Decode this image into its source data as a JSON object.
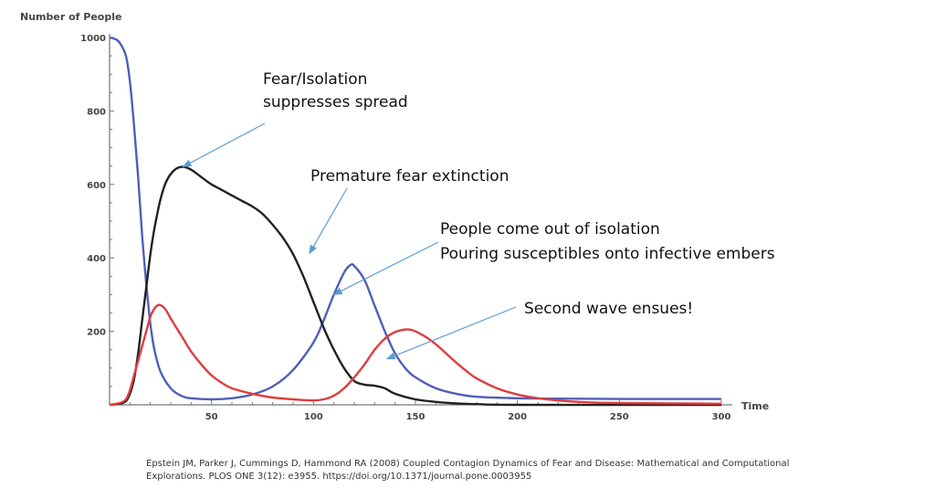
{
  "chart_data": {
    "type": "line",
    "ylabel": "Number of People",
    "xlabel": "Time",
    "xlim": [
      0,
      300
    ],
    "ylim": [
      0,
      1000
    ],
    "x_ticks": [
      50,
      100,
      150,
      200,
      250,
      300
    ],
    "y_ticks": [
      200,
      400,
      600,
      800,
      1000
    ],
    "grid": false,
    "series": [
      {
        "color": "#4f5fb8",
        "points": [
          [
            0,
            1000
          ],
          [
            3,
            995
          ],
          [
            5,
            985
          ],
          [
            8,
            950
          ],
          [
            10,
            880
          ],
          [
            12,
            760
          ],
          [
            14,
            620
          ],
          [
            16,
            460
          ],
          [
            18,
            330
          ],
          [
            20,
            220
          ],
          [
            22,
            150
          ],
          [
            25,
            90
          ],
          [
            30,
            45
          ],
          [
            35,
            25
          ],
          [
            40,
            18
          ],
          [
            50,
            15
          ],
          [
            60,
            18
          ],
          [
            70,
            28
          ],
          [
            80,
            50
          ],
          [
            90,
            95
          ],
          [
            100,
            170
          ],
          [
            105,
            230
          ],
          [
            110,
            300
          ],
          [
            115,
            360
          ],
          [
            118,
            380
          ],
          [
            120,
            378
          ],
          [
            125,
            340
          ],
          [
            130,
            270
          ],
          [
            135,
            200
          ],
          [
            140,
            140
          ],
          [
            145,
            100
          ],
          [
            150,
            75
          ],
          [
            160,
            45
          ],
          [
            170,
            30
          ],
          [
            180,
            22
          ],
          [
            200,
            18
          ],
          [
            220,
            17
          ],
          [
            250,
            16
          ],
          [
            300,
            16
          ]
        ]
      },
      {
        "color": "#222222",
        "points": [
          [
            0,
            0
          ],
          [
            5,
            3
          ],
          [
            8,
            10
          ],
          [
            10,
            30
          ],
          [
            12,
            70
          ],
          [
            14,
            140
          ],
          [
            16,
            230
          ],
          [
            18,
            320
          ],
          [
            20,
            410
          ],
          [
            22,
            480
          ],
          [
            25,
            560
          ],
          [
            28,
            610
          ],
          [
            32,
            640
          ],
          [
            36,
            648
          ],
          [
            40,
            640
          ],
          [
            45,
            620
          ],
          [
            50,
            600
          ],
          [
            55,
            585
          ],
          [
            60,
            570
          ],
          [
            65,
            555
          ],
          [
            70,
            540
          ],
          [
            75,
            520
          ],
          [
            80,
            490
          ],
          [
            85,
            455
          ],
          [
            90,
            410
          ],
          [
            95,
            350
          ],
          [
            100,
            280
          ],
          [
            105,
            210
          ],
          [
            110,
            150
          ],
          [
            115,
            100
          ],
          [
            120,
            65
          ],
          [
            125,
            55
          ],
          [
            130,
            52
          ],
          [
            135,
            45
          ],
          [
            140,
            30
          ],
          [
            150,
            15
          ],
          [
            160,
            8
          ],
          [
            170,
            4
          ],
          [
            180,
            2
          ],
          [
            200,
            0
          ],
          [
            300,
            0
          ]
        ]
      },
      {
        "color": "#e03c3c",
        "points": [
          [
            0,
            0
          ],
          [
            5,
            5
          ],
          [
            8,
            15
          ],
          [
            10,
            40
          ],
          [
            12,
            80
          ],
          [
            15,
            140
          ],
          [
            18,
            200
          ],
          [
            20,
            240
          ],
          [
            22,
            262
          ],
          [
            24,
            272
          ],
          [
            26,
            268
          ],
          [
            28,
            255
          ],
          [
            30,
            235
          ],
          [
            35,
            190
          ],
          [
            40,
            145
          ],
          [
            45,
            110
          ],
          [
            50,
            80
          ],
          [
            55,
            60
          ],
          [
            60,
            45
          ],
          [
            70,
            30
          ],
          [
            80,
            20
          ],
          [
            90,
            15
          ],
          [
            100,
            12
          ],
          [
            105,
            15
          ],
          [
            110,
            25
          ],
          [
            115,
            45
          ],
          [
            120,
            75
          ],
          [
            125,
            110
          ],
          [
            130,
            150
          ],
          [
            135,
            180
          ],
          [
            140,
            198
          ],
          [
            145,
            205
          ],
          [
            148,
            204
          ],
          [
            150,
            200
          ],
          [
            155,
            185
          ],
          [
            160,
            165
          ],
          [
            165,
            140
          ],
          [
            170,
            115
          ],
          [
            175,
            92
          ],
          [
            180,
            72
          ],
          [
            190,
            45
          ],
          [
            200,
            28
          ],
          [
            210,
            18
          ],
          [
            220,
            12
          ],
          [
            230,
            8
          ],
          [
            250,
            5
          ],
          [
            300,
            3
          ]
        ]
      }
    ],
    "annotations": [
      {
        "lines": [
          "Fear/Isolation",
          "suppresses spread"
        ],
        "color": "#5b9bd5",
        "target": [
          36,
          648
        ]
      },
      {
        "lines": [
          "Premature fear extinction"
        ],
        "color": "#5b9bd5",
        "target": [
          98,
          412
        ]
      },
      {
        "lines": [
          "People come out of isolation",
          "Pouring susceptibles onto infective embers"
        ],
        "color": "#5b9bd5",
        "target": [
          110,
          300
        ]
      },
      {
        "lines": [
          "Second wave ensues!"
        ],
        "color": "#5b9bd5",
        "target": [
          136,
          125
        ]
      }
    ]
  },
  "citation": {
    "line1": "Epstein JM, Parker J, Cummings D, Hammond RA (2008) Coupled Contagion Dynamics of Fear and Disease: Mathematical and Computational",
    "line2": "Explorations. PLOS ONE 3(12): e3955. https://doi.org/10.1371/journal.pone.0003955"
  }
}
